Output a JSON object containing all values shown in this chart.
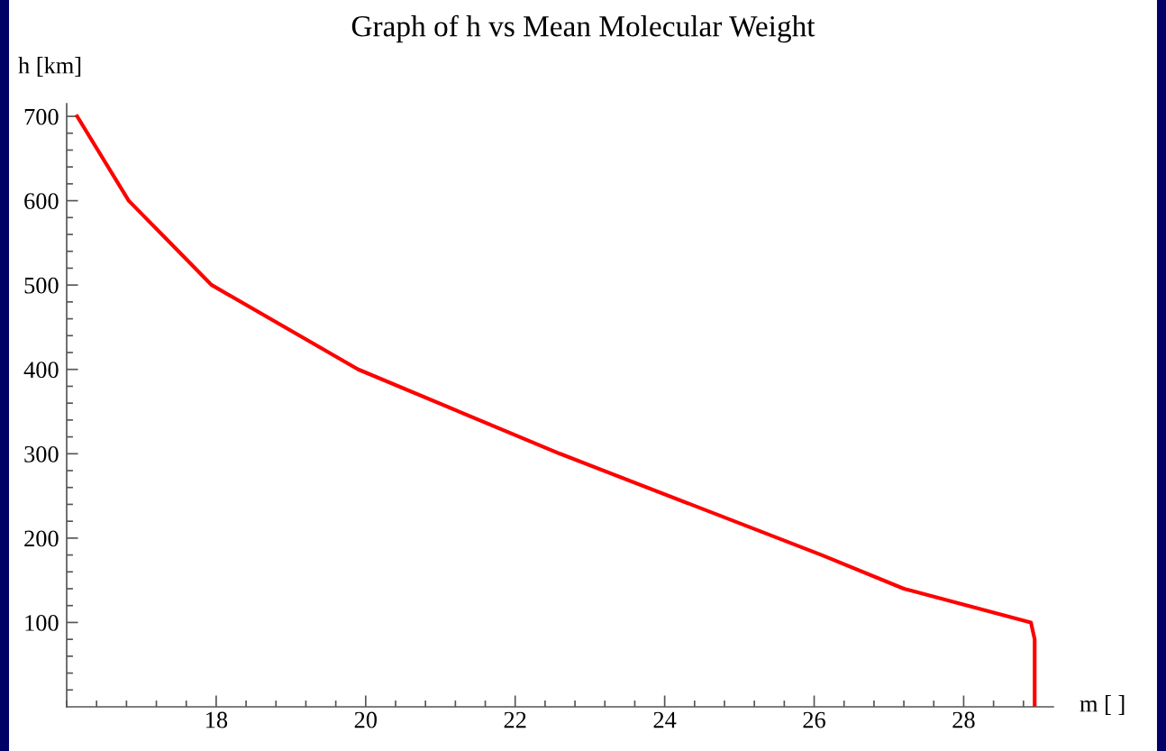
{
  "chart_data": {
    "type": "line",
    "title": "Graph of h vs Mean Molecular Weight",
    "xlabel": "m [ ]",
    "ylabel": "h [km]",
    "series": [
      {
        "color": "#ff0000",
        "x": [
          16.14,
          16.83,
          17.94,
          19.9,
          22.6,
          26.1,
          27.2,
          28.9,
          28.95,
          28.95
        ],
        "values": [
          700,
          600,
          500,
          400,
          300,
          180,
          140,
          100,
          80,
          0
        ]
      }
    ],
    "xlim": [
      16,
      29.2
    ],
    "xticks": [
      18,
      20,
      22,
      24,
      26,
      28
    ],
    "ylim": [
      0,
      715
    ],
    "yticks": [
      100,
      200,
      300,
      400,
      500,
      600,
      700
    ],
    "grid": false,
    "legend": false,
    "marker": "none",
    "line_style": "solid"
  }
}
